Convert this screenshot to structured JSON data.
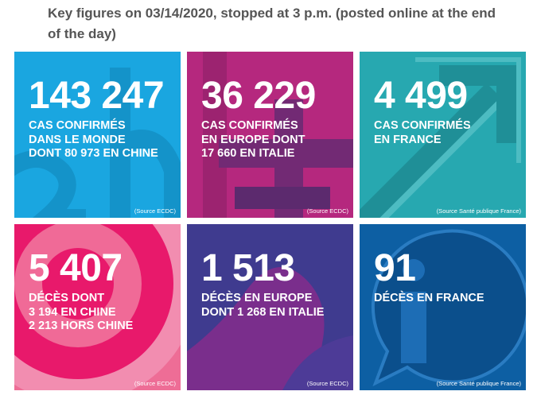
{
  "heading": "Key figures on 03/14/2020, stopped at 3 p.m. (posted online at the end of the day)",
  "tiles": [
    {
      "value": "143 247",
      "description": "CAS CONFIRMÉS\nDANS LE MONDE\nDONT 80 973 EN CHINE",
      "source": "(Source ECDC)",
      "color": "#1aa6e0"
    },
    {
      "value": "36 229",
      "description": "CAS CONFIRMÉS\nEN EUROPE DONT\n17 660 EN ITALIE",
      "source": "(Source ECDC)",
      "color": "#b5287e"
    },
    {
      "value": "4 499",
      "description": "CAS CONFIRMÉS\nEN FRANCE",
      "source": "(Source Santé publique France)",
      "color": "#27a8b0"
    },
    {
      "value": "5 407",
      "description": "DÉCÈS DONT\n3 194 EN CHINE\n2 213 HORS CHINE",
      "source": "(Source ECDC)",
      "color": "#ee6d96"
    },
    {
      "value": "1 513",
      "description": "DÉCÈS EN EUROPE\nDONT 1 268 EN ITALIE",
      "source": "(Source ECDC)",
      "color": "#3f3b8f"
    },
    {
      "value": "91",
      "description": "DÉCÈS EN FRANCE",
      "source": "(Source Santé publique France)",
      "color": "#0d5fa3"
    }
  ]
}
